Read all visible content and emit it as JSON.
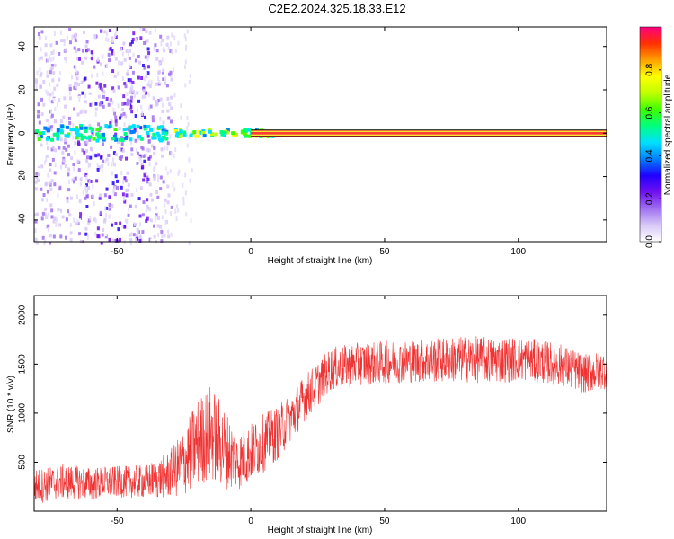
{
  "title": "C2E2.2024.325.18.33.E12",
  "chart_data": [
    {
      "type": "heatmap",
      "name": "spectrogram",
      "xlabel": "Height of straight line (km)",
      "ylabel": "Frequency (Hz)",
      "xlim": [
        -81,
        133
      ],
      "ylim": [
        -50,
        49
      ],
      "xticks": [
        -50,
        0,
        50,
        100
      ],
      "yticks": [
        -40,
        -20,
        0,
        20,
        40
      ],
      "colorbar": {
        "label": "Normalized spectral amplitude",
        "range": [
          0,
          1
        ],
        "ticks": [
          "0.0",
          "0.2",
          "0.4",
          "0.6",
          "0.8"
        ],
        "colors": [
          "#ffffff",
          "#d8c8f8",
          "#a070f0",
          "#7010f0",
          "#2000ff",
          "#0080ff",
          "#00e0ff",
          "#00ff80",
          "#40ff00",
          "#c0ff00",
          "#ffff00",
          "#ffa000",
          "#ff3000",
          "#ff0080"
        ]
      },
      "features": {
        "carrier_frequency_hz": 0,
        "carrier_band_hz": [
          -1.5,
          1.5
        ],
        "noisy_region_km": [
          -81,
          -30
        ]
      }
    },
    {
      "type": "line",
      "name": "snr",
      "xlabel": "Height of straight line (km)",
      "ylabel": "SNR (10 * v/v)",
      "xlim": [
        -81,
        133
      ],
      "ylim": [
        0,
        2200
      ],
      "xticks": [
        -50,
        0,
        50,
        100
      ],
      "yticks": [
        500,
        1000,
        1500,
        2000
      ],
      "line_color": "#ef3232",
      "series": [
        {
          "x": [
            -81,
            -70,
            -60,
            -50,
            -40,
            -35,
            -30,
            -25,
            -20,
            -15,
            -10,
            -5,
            0,
            5,
            10,
            15,
            20,
            25,
            30,
            40,
            50,
            60,
            70,
            80,
            90,
            100,
            110,
            115,
            120,
            125,
            133
          ],
          "y": [
            250,
            300,
            280,
            300,
            300,
            330,
            380,
            500,
            700,
            800,
            650,
            500,
            600,
            700,
            800,
            950,
            1150,
            1300,
            1450,
            1500,
            1520,
            1530,
            1540,
            1550,
            1540,
            1550,
            1520,
            1500,
            1450,
            1400,
            1450
          ],
          "spread": [
            180,
            180,
            170,
            160,
            170,
            200,
            250,
            350,
            450,
            500,
            420,
            300,
            300,
            300,
            280,
            260,
            240,
            230,
            220,
            220,
            220,
            220,
            230,
            240,
            240,
            230,
            220,
            220,
            210,
            200,
            200
          ]
        }
      ]
    }
  ]
}
